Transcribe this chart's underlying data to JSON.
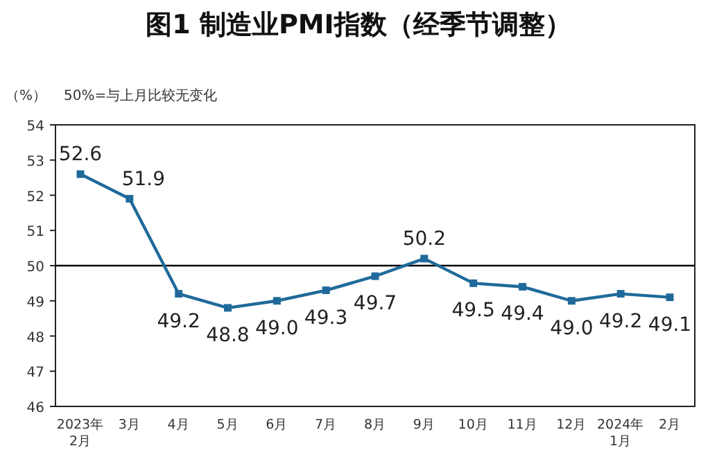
{
  "chart_data": {
    "type": "line",
    "title": "图1  制造业PMI指数（经季节调整）",
    "ylabel": "（%）",
    "annotations": [
      "50%=与上月比较无变化"
    ],
    "categories": [
      "2023年\n2月",
      "3月",
      "4月",
      "5月",
      "6月",
      "7月",
      "8月",
      "9月",
      "10月",
      "11月",
      "12月",
      "2024年\n1月",
      "2月"
    ],
    "series": [
      {
        "color": "#1f6a9a",
        "values": [
          52.6,
          51.9,
          49.2,
          48.8,
          49.0,
          49.3,
          49.7,
          50.2,
          49.5,
          49.4,
          49.0,
          49.2,
          49.1
        ]
      }
    ],
    "value_labels": [
      "52.6",
      "51.9",
      "49.2",
      "48.8",
      "49.0",
      "49.3",
      "49.7",
      "50.2",
      "49.5",
      "49.4",
      "49.0",
      "49.2",
      "49.1"
    ],
    "ylim": [
      46,
      54
    ],
    "yticks": [
      46,
      47,
      48,
      49,
      50,
      51,
      52,
      53,
      54
    ],
    "ref_lines": [
      {
        "axis": "y",
        "value": 50,
        "color": "#000000"
      }
    ],
    "marker": "square",
    "line_style": "solid",
    "grid": false
  }
}
